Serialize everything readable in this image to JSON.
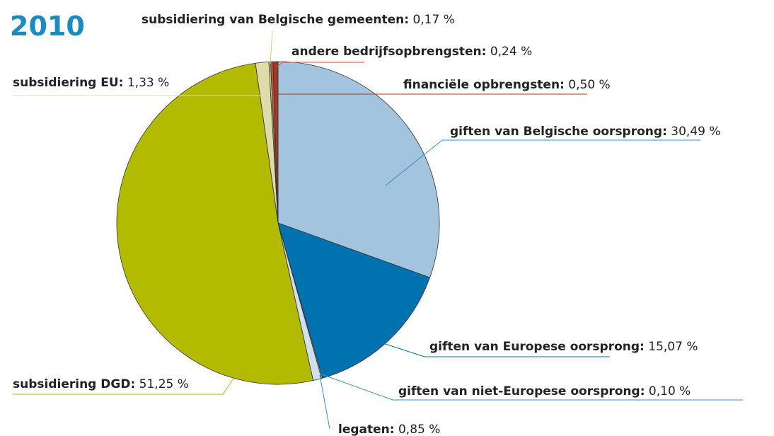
{
  "chart_data": {
    "type": "pie",
    "title": "2010",
    "categories": [
      "giften van Belgische oorsprong:",
      "giften van Europese oorsprong:",
      "giften van niet-Europese oorsprong:",
      "legaten:",
      "subsidiering DGD:",
      "subsidiering EU:",
      "subsidiering van Belgische gemeenten:",
      "andere bedrijfsopbrengsten:",
      "financiële opbrengsten:"
    ],
    "values": [
      30.49,
      15.07,
      0.1,
      0.85,
      51.25,
      1.33,
      0.17,
      0.24,
      0.5
    ],
    "value_labels": [
      "30,49 %",
      "15,07 %",
      "0,10 %",
      "0,85 %",
      "51,25 %",
      "1,33 %",
      "0,17 %",
      "0,24 %",
      "0,50 %"
    ],
    "colors": [
      "#a3c4de",
      "#0072b0",
      "#8fb4d2",
      "#d3dfea",
      "#b2bb00",
      "#dedcaa",
      "#d8cf7a",
      "#c8553d",
      "#9e3b26"
    ]
  }
}
